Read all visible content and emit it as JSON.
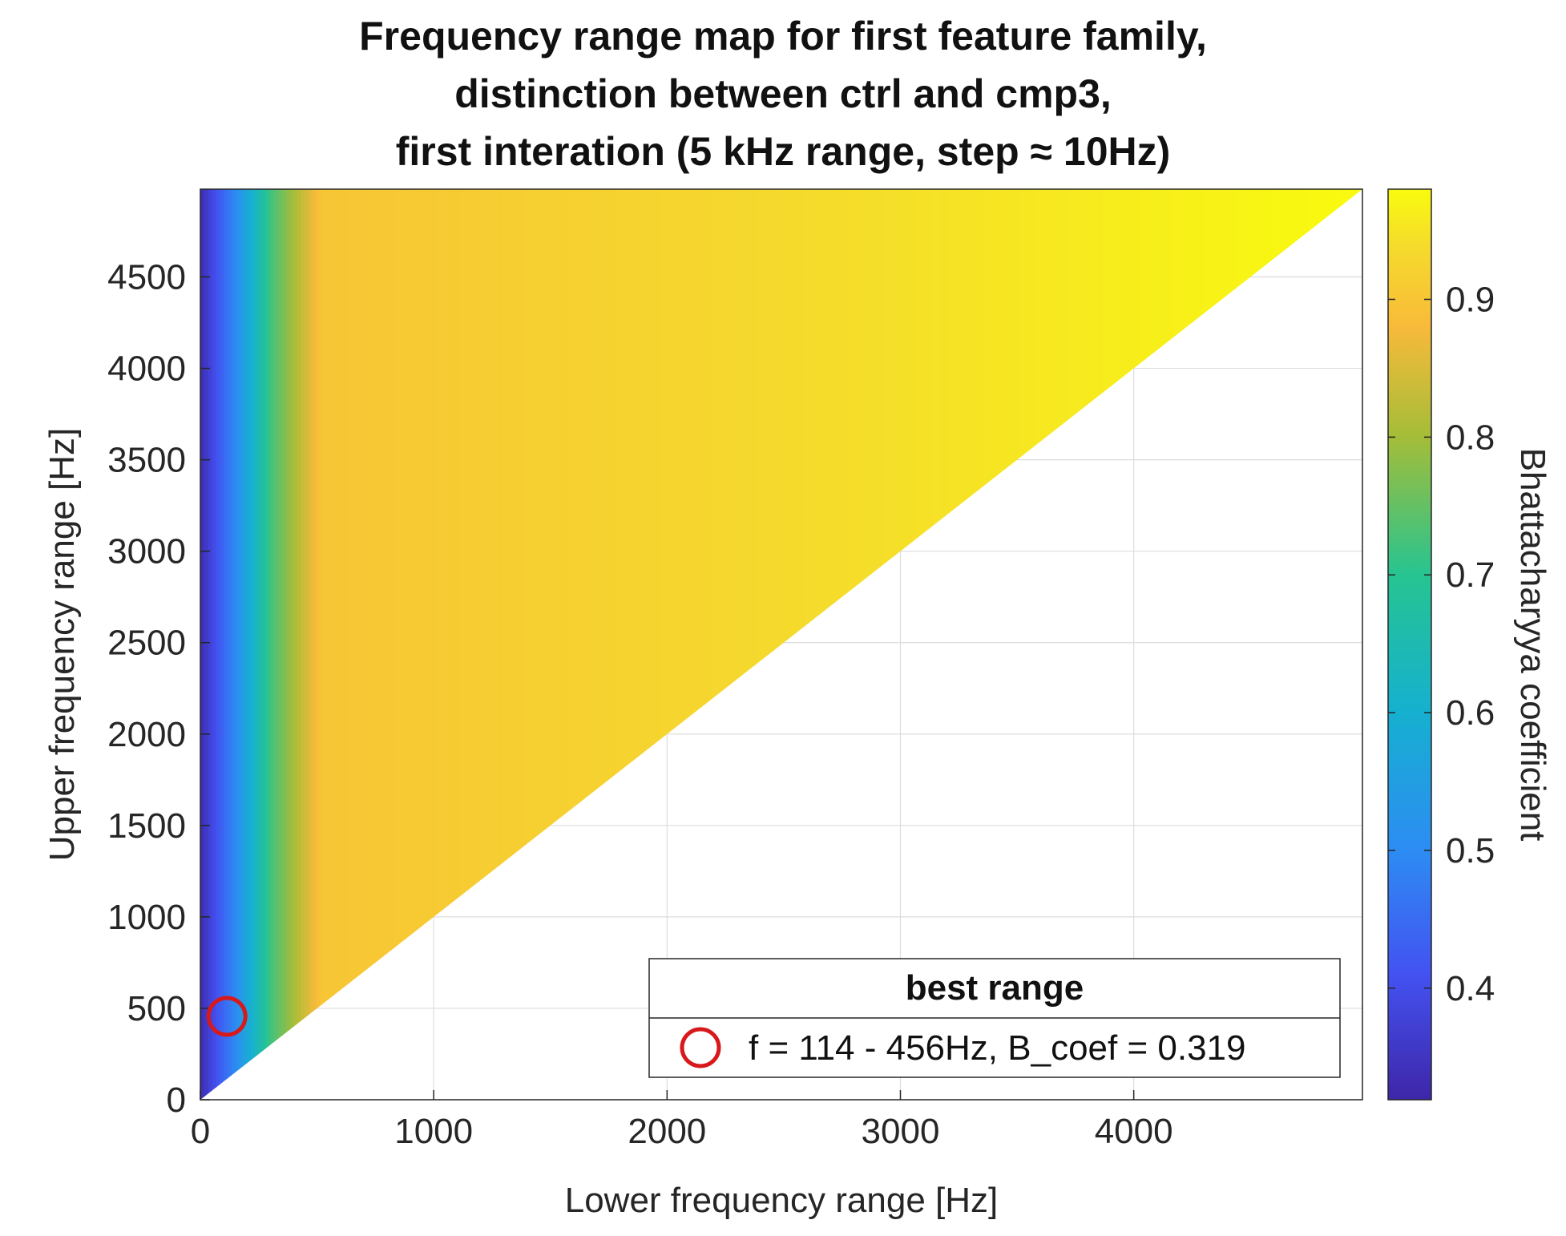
{
  "chart_data": {
    "type": "heatmap",
    "title": [
      "Frequency range map for first feature family,",
      "distinction between ctrl and cmp3,",
      "first interation (5 kHz range, step ≈ 10Hz)"
    ],
    "xlabel": "Lower frequency range [Hz]",
    "ylabel": "Upper frequency range [Hz]",
    "xlim": [
      0,
      4980
    ],
    "ylim": [
      0,
      4980
    ],
    "xticks": [
      0,
      1000,
      2000,
      3000,
      4000
    ],
    "yticks": [
      0,
      500,
      1000,
      1500,
      2000,
      2500,
      3000,
      3500,
      4000,
      4500
    ],
    "grid": true,
    "region": "upper triangle: upper frequency > lower frequency",
    "colorbar": {
      "label": "Bhattacharyya coefficient",
      "colormap": "parula",
      "range": [
        0.319,
        0.98
      ],
      "ticks": [
        0.4,
        0.5,
        0.6,
        0.7,
        0.8,
        0.9
      ]
    },
    "colormap_stops": [
      {
        "value": 0.319,
        "color": "#3e26a8"
      },
      {
        "value": 0.41,
        "color": "#4352f1"
      },
      {
        "value": 0.5,
        "color": "#2d8cf3"
      },
      {
        "value": 0.6,
        "color": "#16b0d0"
      },
      {
        "value": 0.7,
        "color": "#26c491"
      },
      {
        "value": 0.8,
        "color": "#a4bd38"
      },
      {
        "value": 0.88,
        "color": "#f8ba3a"
      },
      {
        "value": 0.94,
        "color": "#f5dc2b"
      },
      {
        "value": 0.98,
        "color": "#f9fb0e"
      }
    ],
    "highlight_point": {
      "x": 114,
      "y": 456,
      "b_coef": 0.319,
      "color": "#d7191c"
    },
    "legend": {
      "title": "best range",
      "entries": [
        "f = 114 - 456Hz, B_coef = 0.319"
      ],
      "placement": "bottom-right"
    }
  }
}
